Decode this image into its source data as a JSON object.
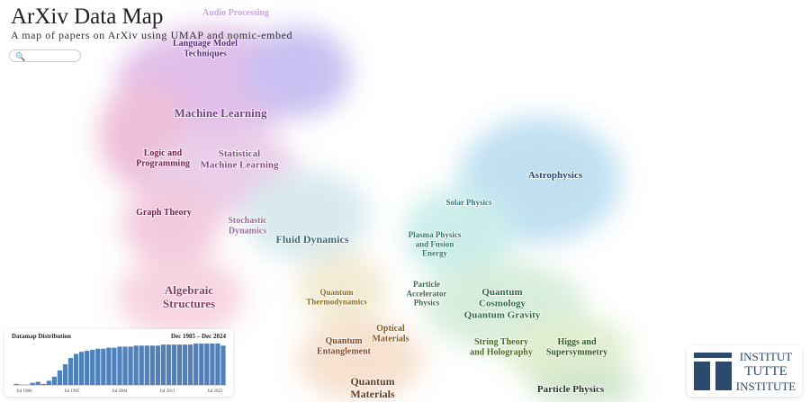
{
  "header": {
    "title": "ArXiv Data Map",
    "subtitle": "A map of papers on ArXiv using UMAP and nomic-embed"
  },
  "labels": [
    {
      "lines": [
        "Audio Processing"
      ]
    },
    {
      "lines": [
        "Language Model",
        "Techniques"
      ]
    },
    {
      "lines": [
        "Machine Learning"
      ]
    },
    {
      "lines": [
        "Logic and",
        "Programming"
      ]
    },
    {
      "lines": [
        "Statistical",
        "Machine Learning"
      ]
    },
    {
      "lines": [
        "Graph Theory"
      ]
    },
    {
      "lines": [
        "Stochastic",
        "Dynamics"
      ]
    },
    {
      "lines": [
        "Fluid Dynamics"
      ]
    },
    {
      "lines": [
        "Algebraic",
        "Structures"
      ]
    },
    {
      "lines": [
        "Quantum",
        "Thermodynamics"
      ]
    },
    {
      "lines": [
        "Solar Physics"
      ]
    },
    {
      "lines": [
        "Astrophysics"
      ]
    },
    {
      "lines": [
        "Plasma Physics",
        "and Fusion",
        "Energy"
      ]
    },
    {
      "lines": [
        "Particle",
        "Accelerator",
        "Physics"
      ]
    },
    {
      "lines": [
        "Quantum",
        "Cosmology",
        "Quantum Gravity"
      ]
    },
    {
      "lines": [
        "Quantum",
        "Entanglement"
      ]
    },
    {
      "lines": [
        "Optical",
        "Materials"
      ]
    },
    {
      "lines": [
        "String Theory",
        "and Holography"
      ]
    },
    {
      "lines": [
        "Higgs and",
        "Supersymmetry"
      ]
    },
    {
      "lines": [
        "Quantum",
        "Materials"
      ]
    },
    {
      "lines": [
        "Particle Physics"
      ]
    }
  ],
  "histogram": {
    "title": "Datamap Distribution",
    "range": "Dec 1985 – Dec 2024",
    "x_labels": [
      "Jul 1986",
      "Jul 1995",
      "Jul 2004",
      "Jul 2011",
      "Jul 2022"
    ],
    "values": [
      1,
      0,
      0,
      2,
      3,
      1,
      4,
      8,
      14,
      20,
      26,
      30,
      32,
      33,
      34,
      35,
      35,
      36,
      36,
      37,
      37,
      37,
      38,
      38,
      38,
      38,
      38,
      39,
      39,
      39,
      39,
      39,
      39,
      40,
      40,
      40,
      40,
      40,
      38
    ]
  },
  "logo": {
    "line1": "INSTITUT",
    "line2": "TUTTE",
    "line3": "INSTITUTE"
  }
}
